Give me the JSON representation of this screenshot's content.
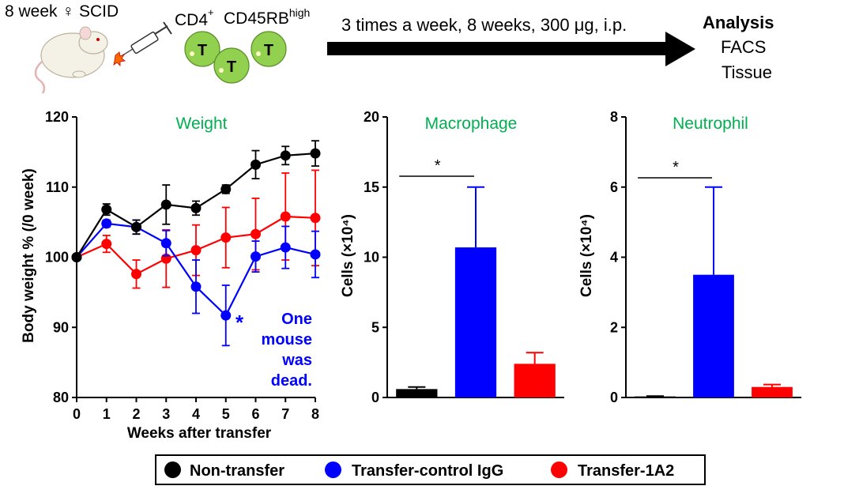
{
  "scheme": {
    "mouse_label": "8 week ♀ SCID",
    "cd4": "CD4",
    "cd4_sup": "+",
    "cd45": "CD45RB",
    "cd45_sup": "high",
    "cell_letter": "T",
    "protocol": "3 times a week, 8 weeks, 300 μg, i.p.",
    "analysis_title": "Analysis",
    "analysis_items": [
      "FACS",
      "Tissue"
    ]
  },
  "colors": {
    "non_transfer": "#000000",
    "control_igg": "#0000ff",
    "a2": "#ff0000",
    "title_green": "#00b050",
    "cell_green": "#92d050"
  },
  "legend": [
    {
      "label": "Non-transfer"
    },
    {
      "label": "Transfer-control IgG"
    },
    {
      "label": "Transfer-1A2"
    }
  ],
  "chart_data": [
    {
      "type": "line",
      "title": "Weight",
      "xlabel": "Weeks after transfer",
      "ylabel": "Body weight % (/0 week)",
      "xlim": [
        0,
        8
      ],
      "ylim": [
        80,
        120
      ],
      "xticks": [
        "0",
        "1",
        "2",
        "3",
        "4",
        "5",
        "6",
        "7",
        "8"
      ],
      "yticks": [
        "80",
        "90",
        "100",
        "110",
        "120"
      ],
      "annotation": [
        "One",
        "mouse",
        "was",
        "dead."
      ],
      "star": "*",
      "series": [
        {
          "key": "non_transfer",
          "x": [
            0,
            1,
            2,
            3,
            4,
            5,
            6,
            7,
            8
          ],
          "y": [
            100,
            106.8,
            104.3,
            107.5,
            107.0,
            109.7,
            113.2,
            114.5,
            114.8
          ],
          "err": [
            0,
            0.8,
            1.0,
            2.8,
            1.0,
            0.6,
            2.0,
            1.3,
            1.8
          ]
        },
        {
          "key": "control_igg",
          "x": [
            0,
            1,
            2,
            3,
            4,
            5,
            6,
            7,
            8
          ],
          "y": [
            100,
            104.8,
            104.3,
            102.0,
            95.8,
            91.7,
            100.1,
            101.4,
            100.4
          ],
          "err": [
            0,
            0.5,
            1.0,
            1.8,
            3.8,
            4.3,
            2.2,
            3.0,
            3.3
          ]
        },
        {
          "key": "a2",
          "x": [
            0,
            1,
            2,
            3,
            4,
            5,
            6,
            7,
            8
          ],
          "y": [
            100,
            101.9,
            97.6,
            99.8,
            101.0,
            102.8,
            103.3,
            105.8,
            105.6
          ],
          "err": [
            0,
            1.2,
            2.0,
            4.1,
            3.6,
            4.3,
            5.1,
            6.2,
            6.8
          ]
        }
      ]
    },
    {
      "type": "bar",
      "title": "Macrophage",
      "ylabel": "Cells (×10⁴)",
      "ylim": [
        0,
        20
      ],
      "yticks": [
        "0",
        "5",
        "10",
        "15",
        "20"
      ],
      "categories": [
        "Non-transfer",
        "Transfer-control IgG",
        "Transfer-1A2"
      ],
      "values": [
        0.6,
        10.7,
        2.4
      ],
      "err": [
        0.15,
        4.3,
        0.8
      ],
      "significance": "*"
    },
    {
      "type": "bar",
      "title": "Neutrophil",
      "ylabel": "Cells (×10⁴)",
      "ylim": [
        0,
        8
      ],
      "yticks": [
        "0",
        "2",
        "4",
        "6",
        "8"
      ],
      "categories": [
        "Non-transfer",
        "Transfer-control IgG",
        "Transfer-1A2"
      ],
      "values": [
        0.03,
        3.5,
        0.3
      ],
      "err": [
        0.01,
        2.5,
        0.07
      ],
      "significance": "*"
    }
  ]
}
